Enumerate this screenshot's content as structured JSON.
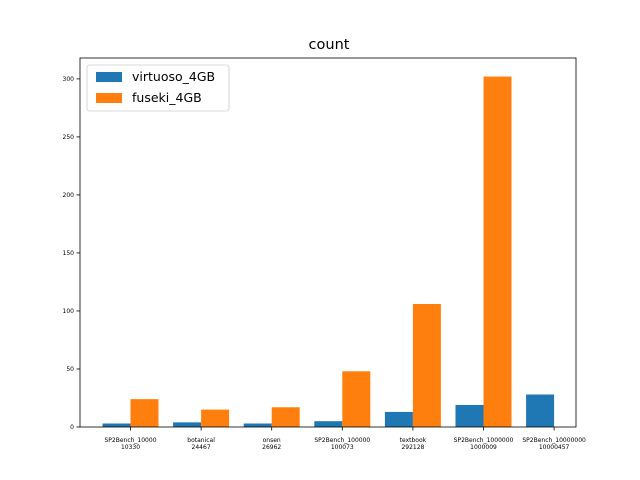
{
  "chart_data": {
    "type": "bar",
    "title": "count",
    "xlabel": "",
    "ylabel": "",
    "categories": [
      [
        "SP2Bench_10000",
        "10330"
      ],
      [
        "botanical",
        "24467"
      ],
      [
        "onsen",
        "26962"
      ],
      [
        "SP2Bench_100000",
        "100073"
      ],
      [
        "textbook",
        "292128"
      ],
      [
        "SP2Bench_1000000",
        "1000009"
      ],
      [
        "SP2Bench_10000000",
        "10000457"
      ]
    ],
    "series": [
      {
        "name": "virtuoso_4GB",
        "color": "#1f77b4",
        "values": [
          3,
          4,
          3,
          5,
          13,
          19,
          28
        ]
      },
      {
        "name": "fuseki_4GB",
        "color": "#ff7f0e",
        "values": [
          24,
          15,
          17,
          48,
          106,
          302,
          null
        ]
      }
    ],
    "yticks": [
      0,
      50,
      100,
      150,
      200,
      250,
      300
    ],
    "ylim": [
      0,
      318
    ],
    "grid": false,
    "legend_position": "top-left"
  }
}
